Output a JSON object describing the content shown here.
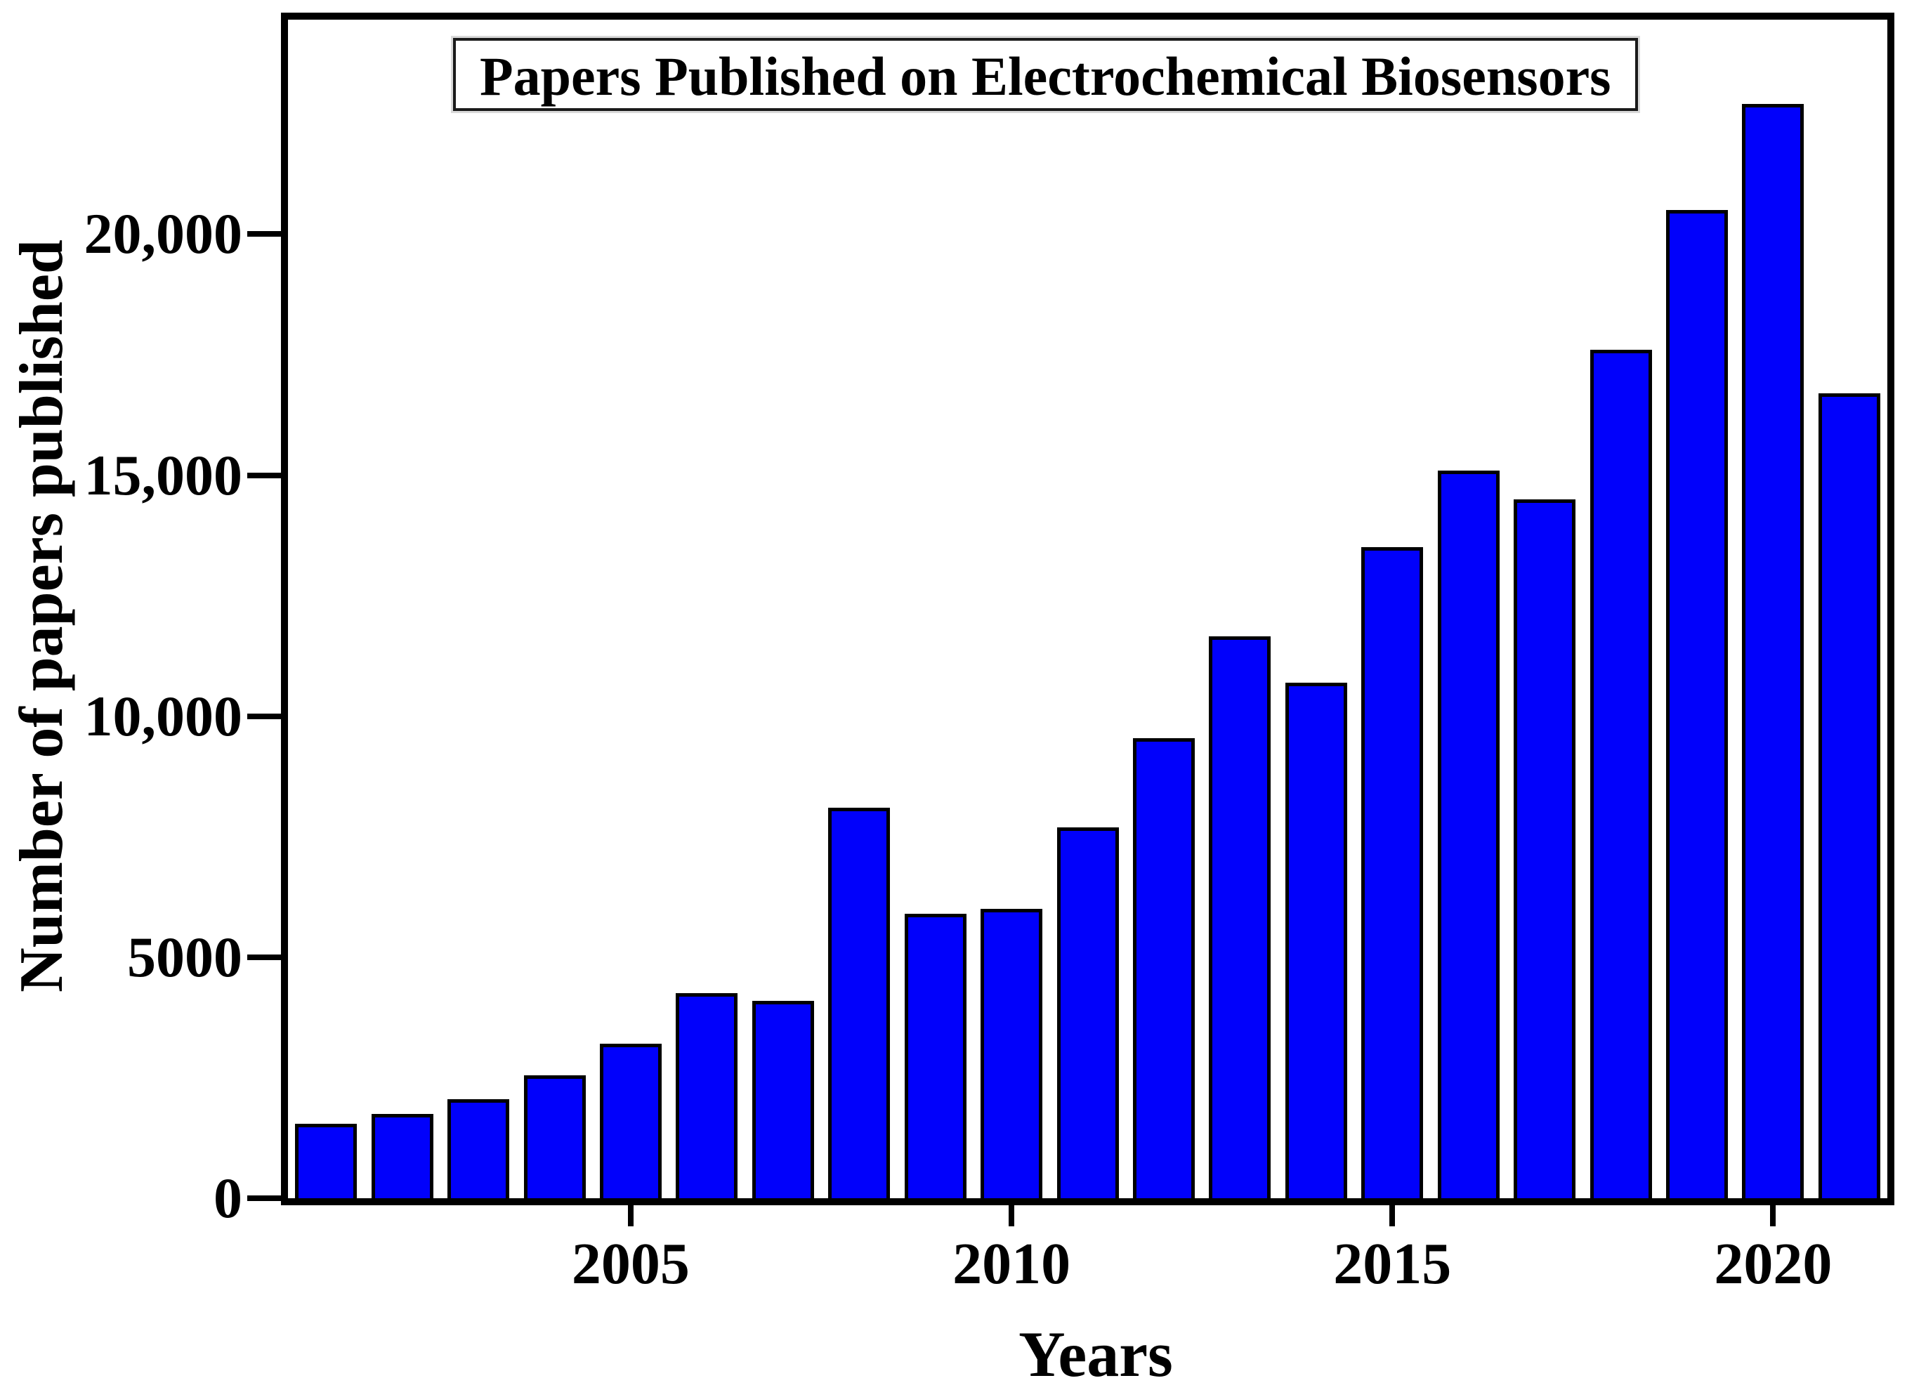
{
  "chart_data": {
    "type": "bar",
    "title": "Papers Published on Electrochemical Biosensors",
    "xlabel": "Years",
    "ylabel": "Number of papers published",
    "categories": [
      2001,
      2002,
      2003,
      2004,
      2005,
      2006,
      2007,
      2008,
      2009,
      2010,
      2011,
      2012,
      2013,
      2014,
      2015,
      2016,
      2017,
      2018,
      2019,
      2020,
      2021
    ],
    "values": [
      1550,
      1750,
      2050,
      2550,
      3200,
      4250,
      4100,
      8100,
      5900,
      6000,
      7700,
      9550,
      11650,
      10700,
      13500,
      15100,
      14500,
      17600,
      20500,
      22700,
      16700
    ],
    "ylim": [
      0,
      24450
    ],
    "x_ticks": [
      2005,
      2010,
      2015,
      2020
    ],
    "y_ticks": [
      {
        "value": 0,
        "label": "0"
      },
      {
        "value": 5000,
        "label": "5000"
      },
      {
        "value": 10000,
        "label": "10,000"
      },
      {
        "value": 15000,
        "label": "15,000"
      },
      {
        "value": 20000,
        "label": "20,000"
      }
    ],
    "grid": false,
    "legend": false,
    "bar_color": "#0101fb",
    "bar_edge_color": "#000000",
    "axis_color": "#000000",
    "background_color": "#ffffff"
  }
}
